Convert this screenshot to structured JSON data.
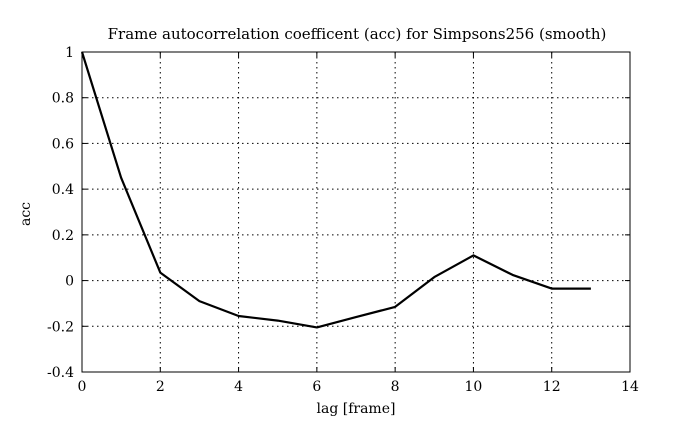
{
  "chart_data": {
    "type": "line",
    "title": "Frame autocorrelation coefficent (acc) for Simpsons256 (smooth)",
    "xlabel": "lag [frame]",
    "ylabel": "acc",
    "xlim": [
      0,
      14
    ],
    "ylim": [
      -0.4,
      1
    ],
    "xticks": [
      0,
      2,
      4,
      6,
      8,
      10,
      12,
      14
    ],
    "yticks": [
      -0.4,
      -0.2,
      0,
      0.2,
      0.4,
      0.6,
      0.8,
      1
    ],
    "xtick_labels": [
      "0",
      "2",
      "4",
      "6",
      "8",
      "10",
      "12",
      "14"
    ],
    "ytick_labels": [
      "-0.4",
      "-0.2",
      "0",
      "0.2",
      "0.4",
      "0.6",
      "0.8",
      "1"
    ],
    "grid": true,
    "series": [
      {
        "color": "#000000",
        "x": [
          0,
          1,
          2,
          3,
          4,
          5,
          6,
          7,
          8,
          9,
          10,
          11,
          12,
          13
        ],
        "y": [
          1.0,
          0.45,
          0.035,
          -0.09,
          -0.155,
          -0.175,
          -0.205,
          -0.16,
          -0.115,
          0.015,
          0.11,
          0.025,
          -0.035,
          -0.035
        ]
      }
    ]
  }
}
